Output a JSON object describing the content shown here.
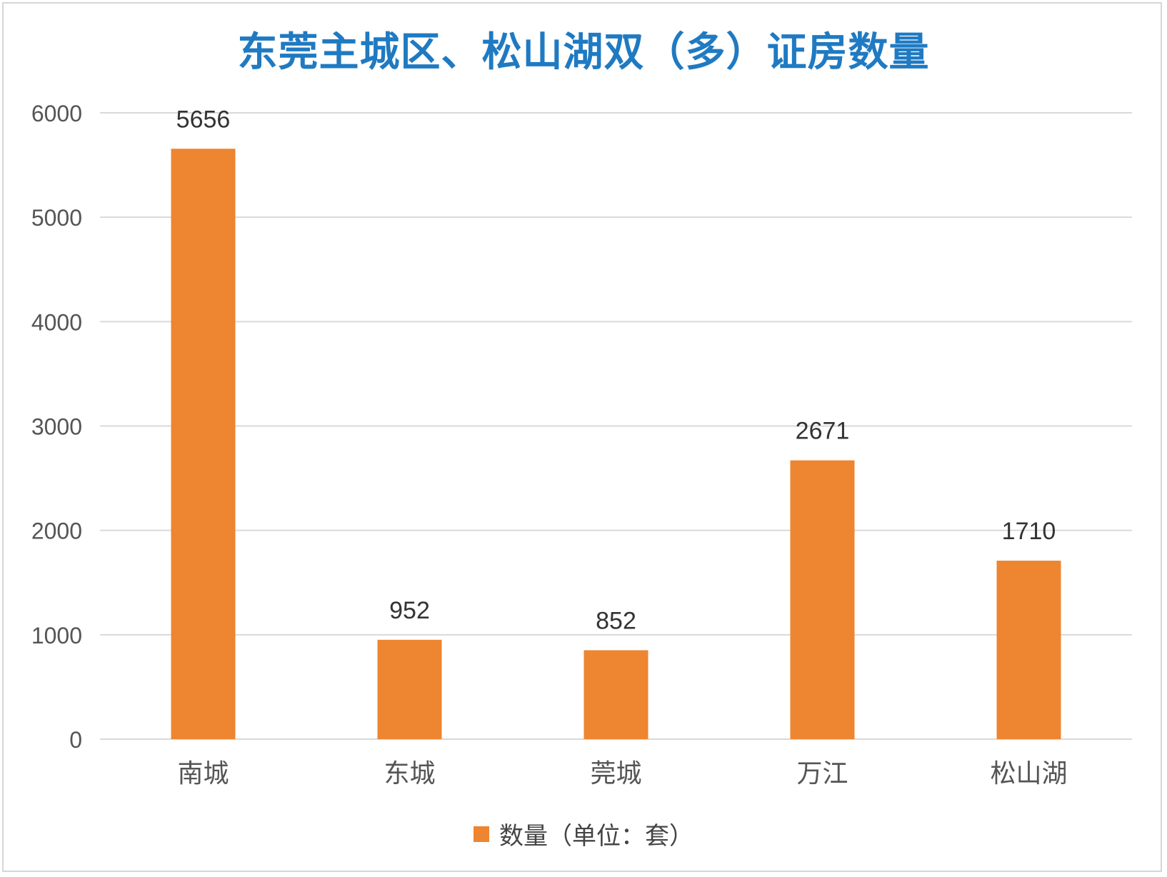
{
  "title": "东莞主城区、松山湖双（多）证房数量",
  "colors": {
    "title": "#1f7ac2",
    "bar": "#ed8531",
    "grid": "#d9d9d9",
    "axis_text": "#555555",
    "label_text": "#333333",
    "frame": "#d6d6d6"
  },
  "chart_data": {
    "type": "bar",
    "title": "东莞主城区、松山湖双（多）证房数量",
    "categories": [
      "南城",
      "东城",
      "莞城",
      "万江",
      "松山湖"
    ],
    "series": [
      {
        "name": "数量（单位：套）",
        "values": [
          5656,
          952,
          852,
          2671,
          1710
        ],
        "color": "#ed8531"
      }
    ],
    "data_labels": [
      "5656",
      "952",
      "852",
      "2671",
      "1710"
    ],
    "ylim": [
      0,
      6000
    ],
    "yticks": [
      0,
      1000,
      2000,
      3000,
      4000,
      5000,
      6000
    ],
    "ytick_labels": [
      "0",
      "1000",
      "2000",
      "3000",
      "4000",
      "5000",
      "6000"
    ],
    "xlabel": "",
    "ylabel": "",
    "grid": true,
    "legend_position": "bottom-center"
  },
  "legend": {
    "label": "数量（单位：套）"
  }
}
